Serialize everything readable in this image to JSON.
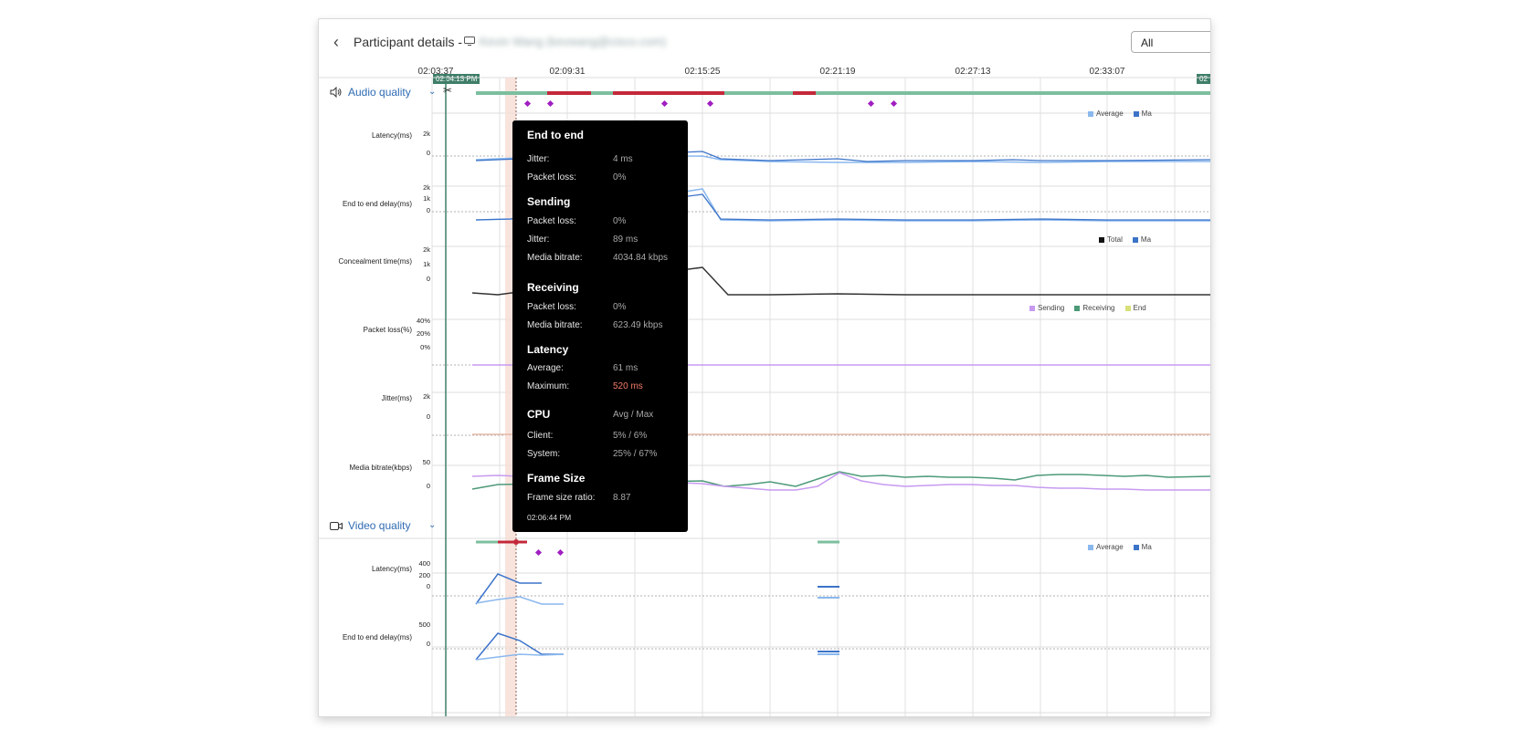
{
  "header": {
    "back_icon": "chevron-left-icon",
    "title": "Participant details -",
    "device_icon": "monitor-icon",
    "participant_name_blurred": "Kevin Wang (kevwang@cisco.com)",
    "filter_value": "All"
  },
  "timeline": {
    "ticks": [
      "02:03:37",
      "02:09:31",
      "02:15:25",
      "02:21:19",
      "02:27:13",
      "02:33:07"
    ],
    "start_flag": "02:04:13 PM",
    "end_flag": "02"
  },
  "audio": {
    "label": "Audio quality",
    "rows": {
      "latency": {
        "label": "Latency(ms)",
        "ticks": [
          "2k",
          "0"
        ]
      },
      "e2e": {
        "label": "End to end delay(ms)",
        "ticks": [
          "2k",
          "1k",
          "0"
        ]
      },
      "concealment": {
        "label": "Concealment time(ms)",
        "ticks": [
          "2k",
          "1k",
          "0"
        ]
      },
      "packet_loss": {
        "label": "Packet loss(%)",
        "ticks": [
          "40%",
          "20%",
          "0%"
        ]
      },
      "jitter": {
        "label": "Jitter(ms)",
        "ticks": [
          "2k",
          "0"
        ]
      },
      "bitrate": {
        "label": "Media bitrate(kbps)",
        "ticks": [
          "50",
          "0"
        ]
      }
    },
    "legend_latency": [
      "Average",
      "Ma"
    ],
    "legend_concealment": [
      "Total",
      "Ma"
    ],
    "legend_packet_loss": [
      "Sending",
      "Receiving",
      "End"
    ]
  },
  "video": {
    "label": "Video quality",
    "rows": {
      "latency": {
        "label": "Latency(ms)",
        "ticks": [
          "400",
          "200",
          "0"
        ]
      },
      "e2e": {
        "label": "End to end delay(ms)",
        "ticks": [
          "500",
          "0"
        ]
      }
    },
    "legend_latency": [
      "Average",
      "Ma"
    ]
  },
  "tooltip": {
    "end_to_end": {
      "title": "End to end",
      "jitter_k": "Jitter:",
      "jitter_v": "4 ms",
      "loss_k": "Packet loss:",
      "loss_v": "0%"
    },
    "sending": {
      "title": "Sending",
      "loss_k": "Packet loss:",
      "loss_v": "0%",
      "jitter_k": "Jitter:",
      "jitter_v": "89 ms",
      "bitrate_k": "Media bitrate:",
      "bitrate_v": "4034.84 kbps"
    },
    "receiving": {
      "title": "Receiving",
      "loss_k": "Packet loss:",
      "loss_v": "0%",
      "bitrate_k": "Media bitrate:",
      "bitrate_v": "623.49 kbps"
    },
    "latency": {
      "title": "Latency",
      "avg_k": "Average:",
      "avg_v": "61 ms",
      "max_k": "Maximum:",
      "max_v": "520 ms"
    },
    "cpu": {
      "title": "CPU",
      "header_v": "Avg / Max",
      "client_k": "Client:",
      "client_v": "5% / 6%",
      "system_k": "System:",
      "system_v": "25% / 67%"
    },
    "frame": {
      "title": "Frame Size",
      "ratio_k": "Frame size ratio:",
      "ratio_v": "8.87"
    },
    "time": "02:06:44 PM"
  },
  "colors": {
    "accent_blue": "#2f6bb3",
    "good_green": "#4c9a78",
    "bad_red": "#c3283a",
    "event_magenta": "#a11ec2",
    "avg_line": "#8ab8ee",
    "max_line": "#3c73c9",
    "sending_line": "#c79af0",
    "receiving_line": "#4c9a78"
  }
}
